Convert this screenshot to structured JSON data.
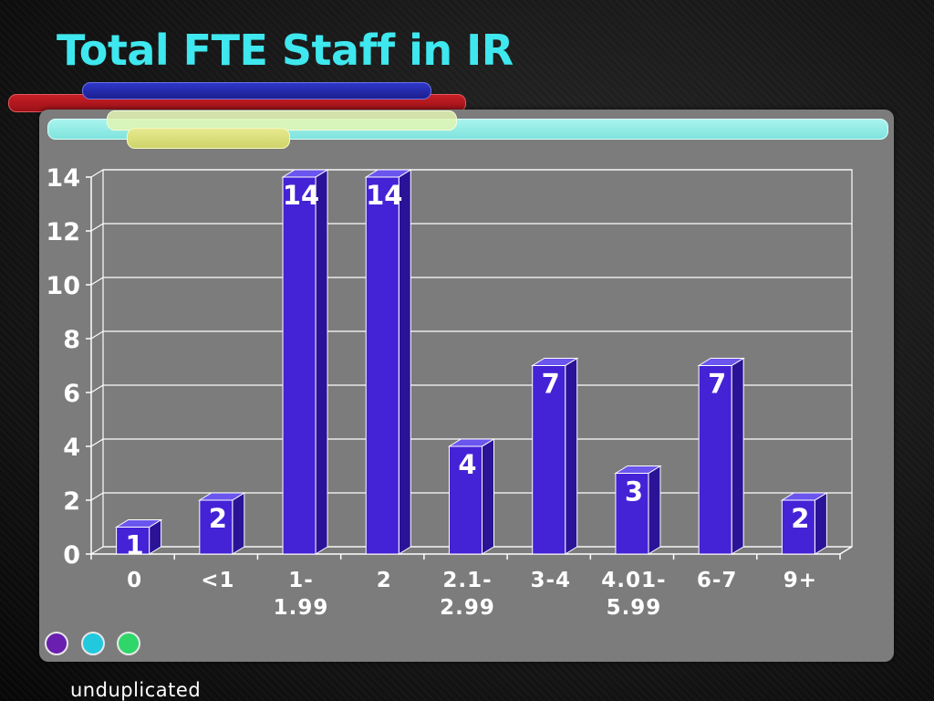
{
  "title": "Total FTE Staff in IR",
  "footnote": "unduplicated",
  "colors": {
    "title": "#3fe7ee",
    "bar_front": "#4422d6",
    "bar_side": "#2a1396",
    "bar_top": "#6a55ee",
    "panel": "#7c7c7c"
  },
  "chart_data": {
    "type": "bar",
    "categories": [
      "0",
      "<1",
      "1-\n1.99",
      "2",
      "2.1-\n2.99",
      "3-4",
      "4.01-\n5.99",
      "6-7",
      "9+"
    ],
    "values": [
      1,
      2,
      14,
      14,
      4,
      7,
      3,
      7,
      2
    ],
    "data_labels": [
      "1",
      "2",
      "14",
      "14",
      "4",
      "7",
      "3",
      "7",
      "2"
    ],
    "ylim": [
      0,
      14
    ],
    "yticks": [
      "0",
      "2",
      "4",
      "6",
      "8",
      "10",
      "12",
      "14"
    ],
    "grid": true,
    "title": "",
    "xlabel": "",
    "ylabel": ""
  }
}
